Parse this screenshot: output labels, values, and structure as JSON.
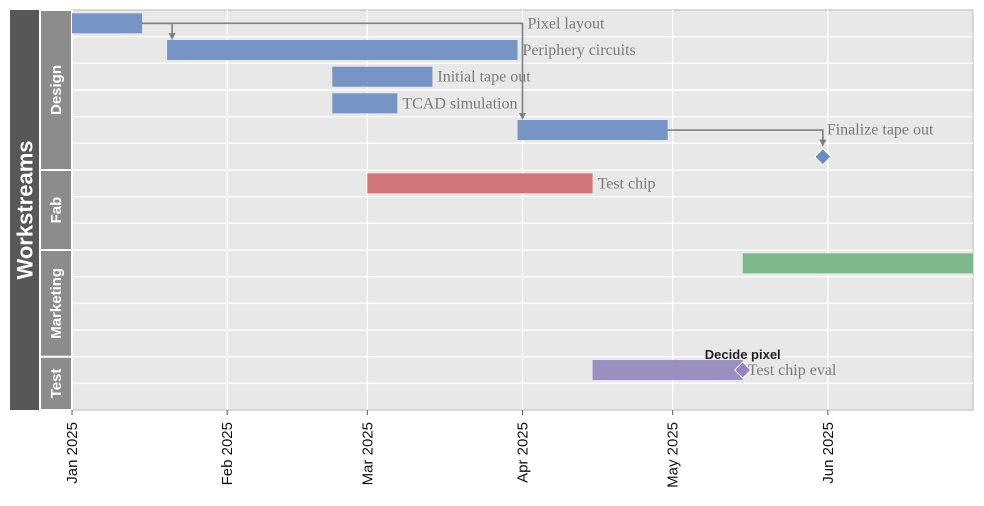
{
  "chart_data": {
    "type": "gantt",
    "title": "",
    "ylabel": "Workstreams",
    "xlim": [
      "2025-01-01",
      "2025-06-30"
    ],
    "x_ticks": [
      {
        "date": "2025-01-01",
        "label": "Jan 2025"
      },
      {
        "date": "2025-02-01",
        "label": "Feb 2025"
      },
      {
        "date": "2025-03-01",
        "label": "Mar 2025"
      },
      {
        "date": "2025-04-01",
        "label": "Apr 2025"
      },
      {
        "date": "2025-05-01",
        "label": "May 2025"
      },
      {
        "date": "2025-06-01",
        "label": "Jun 2025"
      }
    ],
    "grid": true,
    "colors": {
      "Design": "#6b8cc0",
      "Fab": "#cc6b6e",
      "Marketing": "#72b381",
      "Test": "#9485bd",
      "panel": "#e8e8e8",
      "gridline": "#ffffff",
      "outer_strip": "#575757",
      "group_strip": "#8c8c8c",
      "arrow": "#7f7f7f"
    },
    "groups": [
      {
        "name": "Design",
        "rows": 6
      },
      {
        "name": "Fab",
        "rows": 3
      },
      {
        "name": "Marketing",
        "rows": 4
      },
      {
        "name": "Test",
        "rows": 2
      }
    ],
    "tasks": [
      {
        "group": "Design",
        "row": 0,
        "label": "",
        "start": "2025-01-01",
        "end": "2025-01-15"
      },
      {
        "group": "Design",
        "row": 0,
        "label": "Pixel layout",
        "start": "2025-04-01",
        "end": "2025-04-01"
      },
      {
        "group": "Design",
        "row": 1,
        "label": "Periphery circuits",
        "start": "2025-01-20",
        "end": "2025-03-31"
      },
      {
        "group": "Design",
        "row": 2,
        "label": "Initial tape out",
        "start": "2025-02-22",
        "end": "2025-03-14"
      },
      {
        "group": "Design",
        "row": 3,
        "label": "TCAD simulation",
        "start": "2025-02-22",
        "end": "2025-03-07"
      },
      {
        "group": "Design",
        "row": 4,
        "label": "",
        "start": "2025-03-31",
        "end": "2025-04-30"
      },
      {
        "group": "Fab",
        "row": 0,
        "label": "Test chip",
        "start": "2025-03-01",
        "end": "2025-04-15"
      },
      {
        "group": "Marketing",
        "row": 0,
        "label": "",
        "start": "2025-05-15",
        "end": "2025-06-30"
      },
      {
        "group": "Test",
        "row": 0,
        "label": "Test chip eval",
        "start": "2025-04-15",
        "end": "2025-05-15"
      }
    ],
    "milestones": [
      {
        "group": "Design",
        "row": 5,
        "label": "Finalize tape out",
        "date": "2025-05-31"
      },
      {
        "group": "Test",
        "row": 0,
        "label": "Decide pixel",
        "date": "2025-05-15"
      }
    ],
    "dependencies": [
      {
        "label": "Pixel layout",
        "from": {
          "group": "Design",
          "row": 0,
          "date": "2025-01-15"
        },
        "to": {
          "group": "Design",
          "row": 1,
          "date": "2025-01-21"
        }
      },
      {
        "label": "Periphery circuits",
        "from": {
          "group": "Design",
          "row": 0,
          "date": "2025-01-15"
        },
        "to": {
          "group": "Design",
          "row": 4,
          "date": "2025-04-01"
        }
      },
      {
        "label": "Finalize tape out",
        "from": {
          "group": "Design",
          "row": 4,
          "date": "2025-04-30"
        },
        "to": {
          "group": "Design",
          "row": 5,
          "date": "2025-05-31"
        }
      }
    ]
  }
}
